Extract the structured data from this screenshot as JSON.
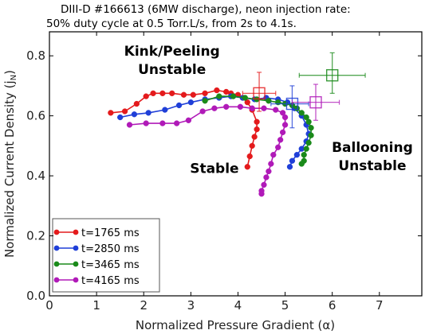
{
  "chart_data": {
    "type": "scatter",
    "title": [
      "DIII-D #166613 (6MW discharge),  neon injection rate:",
      "50% duty cycle at 0.5 Torr.L/s,  from 2s to 4.1s."
    ],
    "xlabel": "Normalized Pressure Gradient (α)",
    "ylabel": "Normalized Current Density (j",
    "ylabel_sub": "N",
    "ylabel_tail": ")",
    "xlim": [
      0,
      7.9
    ],
    "ylim": [
      0,
      0.88
    ],
    "xticks": [
      0,
      1,
      2,
      3,
      4,
      5,
      6,
      7
    ],
    "yticks": [
      0.0,
      0.2,
      0.4,
      0.6,
      0.8
    ],
    "ytick_labels": [
      "0.0",
      "0.2",
      "0.4",
      "0.6",
      "0.8"
    ],
    "grid": false,
    "legend_position": "bottom-left",
    "region_labels": [
      {
        "lines": [
          "Kink/Peeling",
          "Unstable"
        ],
        "x": 2.6,
        "y": 0.8
      },
      {
        "lines": [
          "Stable"
        ],
        "x": 3.5,
        "y": 0.41
      },
      {
        "lines": [
          "Ballooning",
          "Unstable"
        ],
        "x": 6.85,
        "y": 0.48
      }
    ],
    "series": [
      {
        "name": "t=1765 ms",
        "color": "#e41a1c",
        "points": [
          [
            1.3,
            0.61
          ],
          [
            1.6,
            0.615
          ],
          [
            1.85,
            0.64
          ],
          [
            2.05,
            0.665
          ],
          [
            2.2,
            0.675
          ],
          [
            2.4,
            0.675
          ],
          [
            2.6,
            0.675
          ],
          [
            2.85,
            0.67
          ],
          [
            3.05,
            0.67
          ],
          [
            3.3,
            0.675
          ],
          [
            3.55,
            0.685
          ],
          [
            3.75,
            0.68
          ],
          [
            3.85,
            0.675
          ],
          [
            4.0,
            0.67
          ],
          [
            4.1,
            0.66
          ],
          [
            4.2,
            0.645
          ],
          [
            4.3,
            0.62
          ],
          [
            4.4,
            0.58
          ],
          [
            4.4,
            0.555
          ],
          [
            4.35,
            0.53
          ],
          [
            4.3,
            0.5
          ],
          [
            4.25,
            0.465
          ],
          [
            4.2,
            0.43
          ]
        ],
        "error_bar": {
          "x": 4.45,
          "y": 0.675,
          "xerr_minus": 0.35,
          "xerr_plus": 0.35,
          "yerr_minus": 0.06,
          "yerr_plus": 0.07
        }
      },
      {
        "name": "t=2850 ms",
        "color": "#1f3fd8",
        "points": [
          [
            1.5,
            0.595
          ],
          [
            1.8,
            0.605
          ],
          [
            2.1,
            0.61
          ],
          [
            2.45,
            0.62
          ],
          [
            2.75,
            0.635
          ],
          [
            3.0,
            0.645
          ],
          [
            3.3,
            0.655
          ],
          [
            3.6,
            0.66
          ],
          [
            3.85,
            0.665
          ],
          [
            4.1,
            0.66
          ],
          [
            4.35,
            0.655
          ],
          [
            4.6,
            0.66
          ],
          [
            4.85,
            0.655
          ],
          [
            5.05,
            0.645
          ],
          [
            5.2,
            0.625
          ],
          [
            5.35,
            0.6
          ],
          [
            5.45,
            0.57
          ],
          [
            5.5,
            0.54
          ],
          [
            5.45,
            0.515
          ],
          [
            5.35,
            0.49
          ],
          [
            5.25,
            0.47
          ],
          [
            5.15,
            0.45
          ],
          [
            5.1,
            0.43
          ]
        ],
        "error_bar": {
          "x": 5.15,
          "y": 0.64,
          "xerr_minus": 0.45,
          "xerr_plus": 0.35,
          "yerr_minus": 0.08,
          "yerr_plus": 0.06
        }
      },
      {
        "name": "t=3465 ms",
        "color": "#1a8a1a",
        "points": [
          [
            3.3,
            0.65
          ],
          [
            3.6,
            0.665
          ],
          [
            3.9,
            0.665
          ],
          [
            4.15,
            0.66
          ],
          [
            4.4,
            0.655
          ],
          [
            4.65,
            0.65
          ],
          [
            4.85,
            0.645
          ],
          [
            5.0,
            0.64
          ],
          [
            5.15,
            0.635
          ],
          [
            5.25,
            0.625
          ],
          [
            5.35,
            0.61
          ],
          [
            5.45,
            0.595
          ],
          [
            5.5,
            0.58
          ],
          [
            5.55,
            0.56
          ],
          [
            5.55,
            0.535
          ],
          [
            5.5,
            0.51
          ],
          [
            5.45,
            0.49
          ],
          [
            5.4,
            0.47
          ],
          [
            5.4,
            0.45
          ],
          [
            5.35,
            0.44
          ]
        ],
        "error_bar": {
          "x": 6.0,
          "y": 0.735,
          "xerr_minus": 0.7,
          "xerr_plus": 0.7,
          "yerr_minus": 0.06,
          "yerr_plus": 0.075
        }
      },
      {
        "name": "t=4165 ms",
        "color": "#b01ab8",
        "points": [
          [
            1.7,
            0.57
          ],
          [
            2.05,
            0.575
          ],
          [
            2.4,
            0.575
          ],
          [
            2.7,
            0.575
          ],
          [
            2.95,
            0.585
          ],
          [
            3.25,
            0.615
          ],
          [
            3.5,
            0.625
          ],
          [
            3.75,
            0.63
          ],
          [
            4.05,
            0.63
          ],
          [
            4.3,
            0.625
          ],
          [
            4.55,
            0.625
          ],
          [
            4.8,
            0.62
          ],
          [
            4.95,
            0.61
          ],
          [
            5.0,
            0.595
          ],
          [
            5.0,
            0.57
          ],
          [
            4.95,
            0.545
          ],
          [
            4.9,
            0.52
          ],
          [
            4.85,
            0.495
          ],
          [
            4.75,
            0.47
          ],
          [
            4.7,
            0.44
          ],
          [
            4.65,
            0.415
          ],
          [
            4.6,
            0.395
          ],
          [
            4.55,
            0.37
          ],
          [
            4.5,
            0.35
          ],
          [
            4.5,
            0.34
          ]
        ],
        "error_bar": {
          "x": 5.65,
          "y": 0.645,
          "xerr_minus": 0.5,
          "xerr_plus": 0.5,
          "yerr_minus": 0.06,
          "yerr_plus": 0.06
        }
      }
    ]
  }
}
